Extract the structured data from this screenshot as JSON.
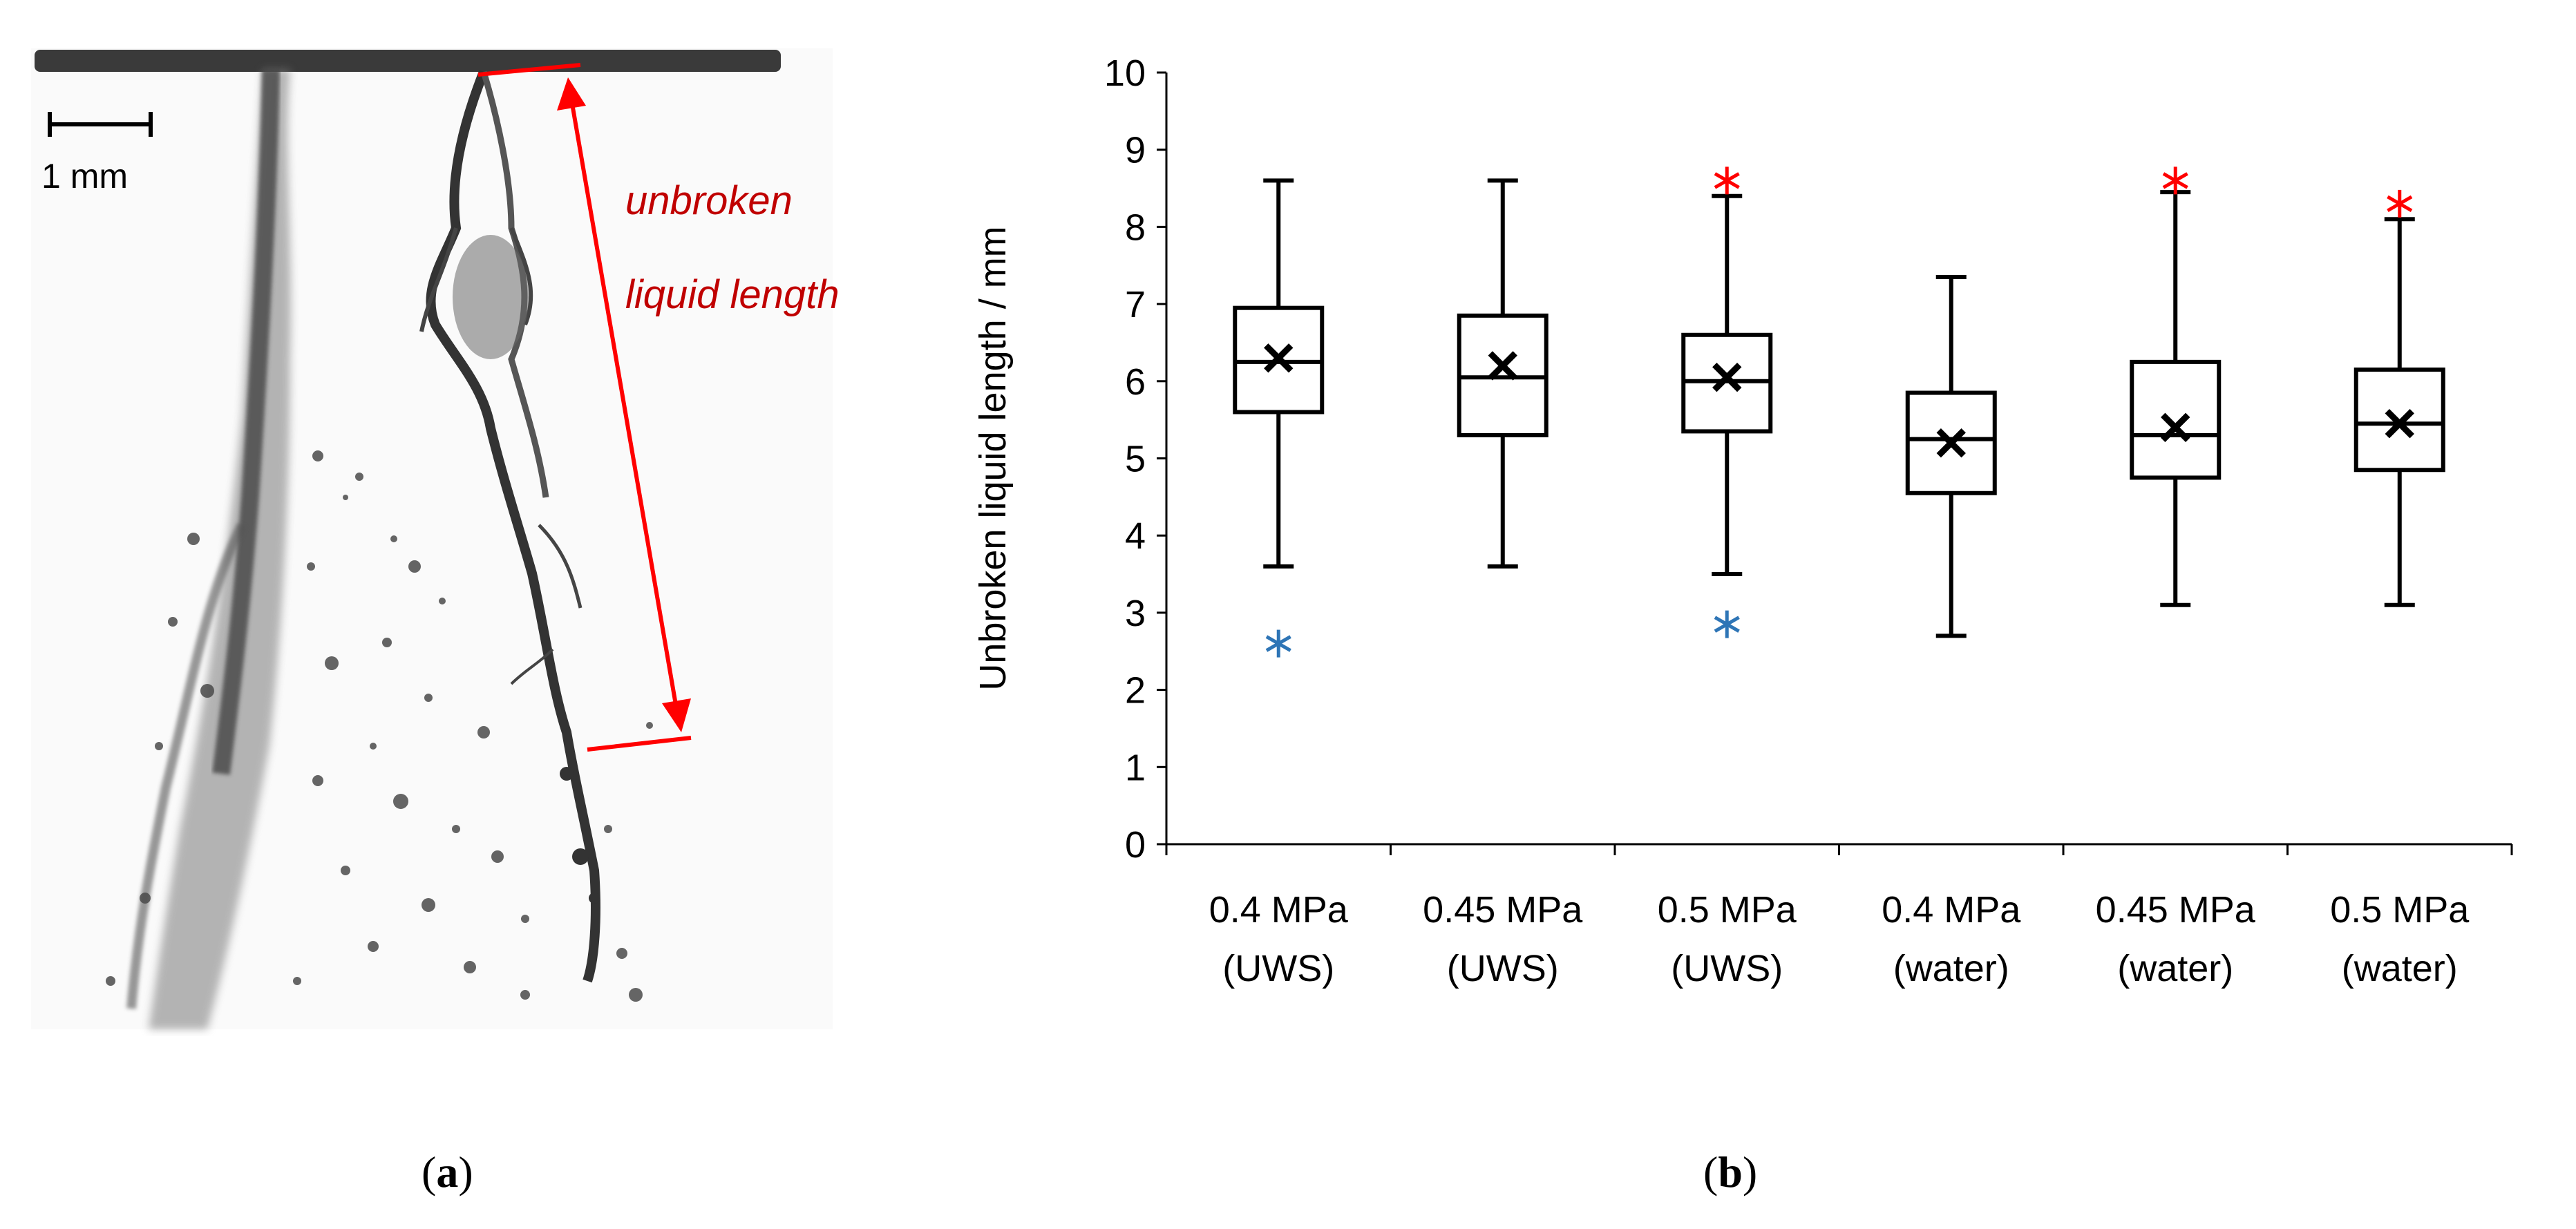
{
  "panel_a": {
    "scale_label": "1 mm",
    "annotation_line1": "unbroken",
    "annotation_line2": "liquid length",
    "annotation_color": "#c00000",
    "arrow_color": "#ff0000"
  },
  "captions": {
    "a_open": "(",
    "a_letter": "a",
    "a_close": ")",
    "b_open": "(",
    "b_letter": "b",
    "b_close": ")"
  },
  "chart_data": {
    "type": "boxplot",
    "title": "",
    "ylabel": "Unbroken liquid length / mm",
    "xlabel": "",
    "ylim": [
      0,
      10
    ],
    "yticks": [
      0,
      1,
      2,
      3,
      4,
      5,
      6,
      7,
      8,
      9,
      10
    ],
    "grid": false,
    "mean_marker": "×",
    "outlier_marker": "✱",
    "high_outlier_color": "#ff0000",
    "low_outlier_color": "#2e75b6",
    "boxes": [
      {
        "label_line1": "0.4 MPa",
        "label_line2": "(UWS)",
        "whisker_low": 3.6,
        "q1": 5.6,
        "median": 6.25,
        "q3": 6.95,
        "whisker_high": 8.6,
        "mean": 6.3,
        "outliers_high": [],
        "outliers_low": [
          2.6
        ]
      },
      {
        "label_line1": "0.45 MPa",
        "label_line2": "(UWS)",
        "whisker_low": 3.6,
        "q1": 5.3,
        "median": 6.05,
        "q3": 6.85,
        "whisker_high": 8.6,
        "mean": 6.2,
        "outliers_high": [],
        "outliers_low": []
      },
      {
        "label_line1": "0.5 MPa",
        "label_line2": "(UWS)",
        "whisker_low": 3.5,
        "q1": 5.35,
        "median": 6.0,
        "q3": 6.6,
        "whisker_high": 8.4,
        "mean": 6.05,
        "outliers_high": [
          8.6
        ],
        "outliers_low": [
          2.85
        ]
      },
      {
        "label_line1": "0.4 MPa",
        "label_line2": "(water)",
        "whisker_low": 2.7,
        "q1": 4.55,
        "median": 5.25,
        "q3": 5.85,
        "whisker_high": 7.35,
        "mean": 5.2,
        "outliers_high": [],
        "outliers_low": []
      },
      {
        "label_line1": "0.45 MPa",
        "label_line2": "(water)",
        "whisker_low": 3.1,
        "q1": 4.75,
        "median": 5.3,
        "q3": 6.25,
        "whisker_high": 8.45,
        "mean": 5.4,
        "outliers_high": [
          8.6
        ],
        "outliers_low": []
      },
      {
        "label_line1": "0.5 MPa",
        "label_line2": "(water)",
        "whisker_low": 3.1,
        "q1": 4.85,
        "median": 5.45,
        "q3": 6.15,
        "whisker_high": 8.1,
        "mean": 5.45,
        "outliers_high": [
          8.3
        ],
        "outliers_low": []
      }
    ]
  }
}
